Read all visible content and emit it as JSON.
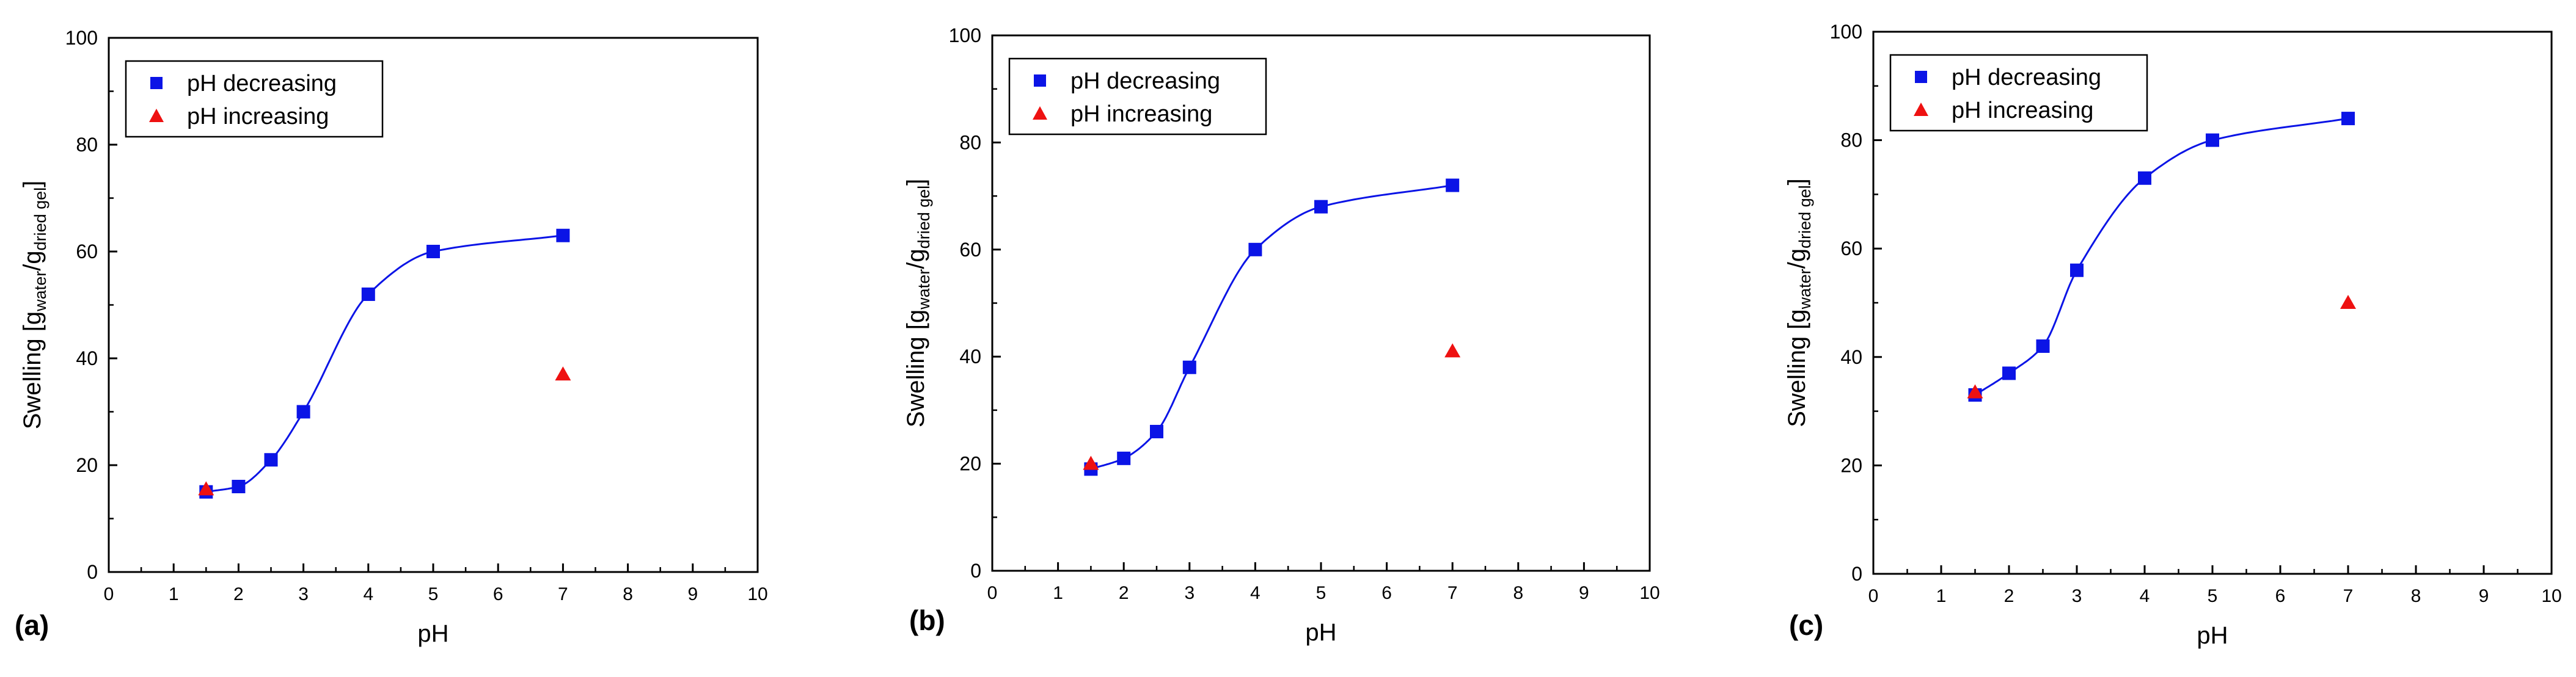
{
  "colors": {
    "decreasing": "#0b14e6",
    "increasing": "#ee1111",
    "axis": "#000000"
  },
  "chart_data": [
    {
      "type": "scatter",
      "panel_label": "(a)",
      "xlabel": "pH",
      "ylabel_main": "Swelling [g",
      "ylabel_sub1": "water",
      "ylabel_mid": "/g",
      "ylabel_sub2": "dried gel",
      "ylabel_end": "]",
      "xlim": [
        0,
        10
      ],
      "ylim": [
        0,
        100
      ],
      "xticks": [
        0,
        1,
        2,
        3,
        4,
        5,
        6,
        7,
        8,
        9,
        10
      ],
      "yticks": [
        0,
        20,
        40,
        60,
        80,
        100
      ],
      "legend_position": "top-left",
      "series": [
        {
          "name": "pH decreasing",
          "marker": "square",
          "fit_line": true,
          "x": [
            1.5,
            2,
            2.5,
            3,
            4,
            5,
            7
          ],
          "y": [
            15,
            16,
            21,
            30,
            52,
            60,
            63
          ]
        },
        {
          "name": "pH increasing",
          "marker": "triangle",
          "fit_line": false,
          "x": [
            1.5,
            7
          ],
          "y": [
            15.5,
            37
          ]
        }
      ]
    },
    {
      "type": "scatter",
      "panel_label": "(b)",
      "xlabel": "pH",
      "ylabel_main": "Swelling [g",
      "ylabel_sub1": "water",
      "ylabel_mid": "/g",
      "ylabel_sub2": "dried gel",
      "ylabel_end": "]",
      "xlim": [
        0,
        10
      ],
      "ylim": [
        0,
        100
      ],
      "xticks": [
        0,
        1,
        2,
        3,
        4,
        5,
        6,
        7,
        8,
        9,
        10
      ],
      "yticks": [
        0,
        20,
        40,
        60,
        80,
        100
      ],
      "legend_position": "top-left",
      "series": [
        {
          "name": "pH decreasing",
          "marker": "square",
          "fit_line": true,
          "x": [
            1.5,
            2,
            2.5,
            3,
            4,
            5,
            7
          ],
          "y": [
            19,
            21,
            26,
            38,
            60,
            68,
            72
          ]
        },
        {
          "name": "pH increasing",
          "marker": "triangle",
          "fit_line": false,
          "x": [
            1.5,
            7
          ],
          "y": [
            20,
            41
          ]
        }
      ]
    },
    {
      "type": "scatter",
      "panel_label": "(c)",
      "xlabel": "pH",
      "ylabel_main": "Swelling [g",
      "ylabel_sub1": "water",
      "ylabel_mid": "/g",
      "ylabel_sub2": "dried gel",
      "ylabel_end": "]",
      "xlim": [
        0,
        10
      ],
      "ylim": [
        0,
        100
      ],
      "xticks": [
        0,
        1,
        2,
        3,
        4,
        5,
        6,
        7,
        8,
        9,
        10
      ],
      "yticks": [
        0,
        20,
        40,
        60,
        80,
        100
      ],
      "legend_position": "top-left",
      "series": [
        {
          "name": "pH decreasing",
          "marker": "square",
          "fit_line": true,
          "x": [
            1.5,
            2,
            2.5,
            3,
            4,
            5,
            7
          ],
          "y": [
            33,
            37,
            42,
            56,
            73,
            80,
            84
          ]
        },
        {
          "name": "pH increasing",
          "marker": "triangle",
          "fit_line": false,
          "x": [
            1.5,
            7
          ],
          "y": [
            33.5,
            50
          ]
        }
      ]
    }
  ]
}
